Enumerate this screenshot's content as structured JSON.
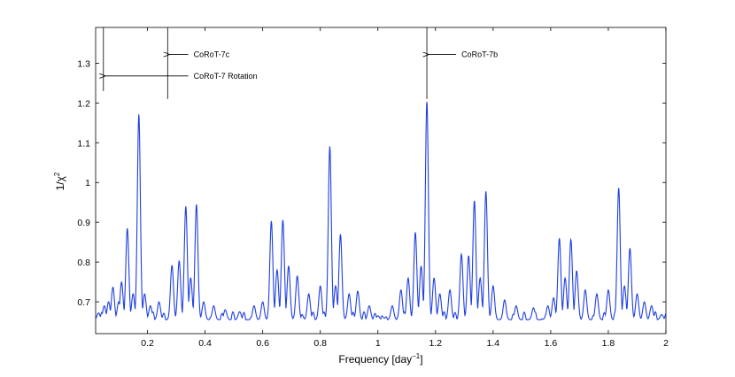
{
  "chart_data": {
    "type": "line",
    "title": "",
    "xlabel": "Frequency [day",
    "xlabel_sup": "−1",
    "xlabel_end": "]",
    "ylabel": "1/χ",
    "ylabel_sup": "2",
    "xlim": [
      0.02,
      2.0
    ],
    "ylim": [
      0.62,
      1.39
    ],
    "xticks": [
      0.2,
      0.4,
      0.6,
      0.8,
      1.0,
      1.2,
      1.4,
      1.6,
      1.8,
      2.0
    ],
    "xtick_labels": [
      "0.2",
      "0.4",
      "0.6",
      "0.8",
      "1",
      "1.2",
      "1.4",
      "1.6",
      "1.8",
      "2"
    ],
    "yticks": [
      0.7,
      0.8,
      0.9,
      1.0,
      1.1,
      1.2,
      1.3
    ],
    "ytick_labels": [
      "0.7",
      "0.8",
      "0.9",
      "1",
      "1.1",
      "1.2",
      "1.3"
    ],
    "grid": false,
    "line_color": "#1f3fe0",
    "baseline": 0.655,
    "peaks": [
      {
        "x": 0.03,
        "y": 0.672
      },
      {
        "x": 0.05,
        "y": 0.69
      },
      {
        "x": 0.065,
        "y": 0.7
      },
      {
        "x": 0.08,
        "y": 0.737
      },
      {
        "x": 0.1,
        "y": 0.7
      },
      {
        "x": 0.11,
        "y": 0.75
      },
      {
        "x": 0.13,
        "y": 0.885
      },
      {
        "x": 0.15,
        "y": 0.72
      },
      {
        "x": 0.17,
        "y": 1.172
      },
      {
        "x": 0.19,
        "y": 0.72
      },
      {
        "x": 0.21,
        "y": 0.69
      },
      {
        "x": 0.24,
        "y": 0.7
      },
      {
        "x": 0.285,
        "y": 0.792
      },
      {
        "x": 0.31,
        "y": 0.803
      },
      {
        "x": 0.333,
        "y": 0.94
      },
      {
        "x": 0.35,
        "y": 0.76
      },
      {
        "x": 0.37,
        "y": 0.945
      },
      {
        "x": 0.395,
        "y": 0.7
      },
      {
        "x": 0.43,
        "y": 0.69
      },
      {
        "x": 0.47,
        "y": 0.68
      },
      {
        "x": 0.52,
        "y": 0.675
      },
      {
        "x": 0.57,
        "y": 0.69
      },
      {
        "x": 0.6,
        "y": 0.7
      },
      {
        "x": 0.63,
        "y": 0.903
      },
      {
        "x": 0.65,
        "y": 0.78
      },
      {
        "x": 0.67,
        "y": 0.906
      },
      {
        "x": 0.69,
        "y": 0.79
      },
      {
        "x": 0.72,
        "y": 0.765
      },
      {
        "x": 0.76,
        "y": 0.72
      },
      {
        "x": 0.8,
        "y": 0.74
      },
      {
        "x": 0.833,
        "y": 1.091
      },
      {
        "x": 0.853,
        "y": 0.74
      },
      {
        "x": 0.87,
        "y": 0.87
      },
      {
        "x": 0.9,
        "y": 0.72
      },
      {
        "x": 0.93,
        "y": 0.727
      },
      {
        "x": 0.97,
        "y": 0.69
      },
      {
        "x": 1.0,
        "y": 0.665
      },
      {
        "x": 1.05,
        "y": 0.69
      },
      {
        "x": 1.08,
        "y": 0.73
      },
      {
        "x": 1.105,
        "y": 0.76
      },
      {
        "x": 1.13,
        "y": 0.875
      },
      {
        "x": 1.15,
        "y": 0.79
      },
      {
        "x": 1.17,
        "y": 1.204
      },
      {
        "x": 1.195,
        "y": 0.76
      },
      {
        "x": 1.215,
        "y": 0.72
      },
      {
        "x": 1.25,
        "y": 0.73
      },
      {
        "x": 1.29,
        "y": 0.82
      },
      {
        "x": 1.315,
        "y": 0.816
      },
      {
        "x": 1.335,
        "y": 0.955
      },
      {
        "x": 1.355,
        "y": 0.76
      },
      {
        "x": 1.375,
        "y": 0.978
      },
      {
        "x": 1.4,
        "y": 0.74
      },
      {
        "x": 1.44,
        "y": 0.705
      },
      {
        "x": 1.48,
        "y": 0.69
      },
      {
        "x": 1.54,
        "y": 0.685
      },
      {
        "x": 1.59,
        "y": 0.69
      },
      {
        "x": 1.61,
        "y": 0.71
      },
      {
        "x": 1.63,
        "y": 0.86
      },
      {
        "x": 1.65,
        "y": 0.76
      },
      {
        "x": 1.67,
        "y": 0.857
      },
      {
        "x": 1.69,
        "y": 0.778
      },
      {
        "x": 1.72,
        "y": 0.73
      },
      {
        "x": 1.76,
        "y": 0.72
      },
      {
        "x": 1.8,
        "y": 0.73
      },
      {
        "x": 1.836,
        "y": 0.987
      },
      {
        "x": 1.856,
        "y": 0.74
      },
      {
        "x": 1.875,
        "y": 0.835
      },
      {
        "x": 1.9,
        "y": 0.72
      },
      {
        "x": 1.925,
        "y": 0.7
      },
      {
        "x": 1.95,
        "y": 0.69
      },
      {
        "x": 1.985,
        "y": 0.668
      }
    ],
    "annotations": [
      {
        "label": "CoRoT-7c",
        "x": 0.27,
        "y_top": 1.39,
        "y_bottom": 1.21,
        "arrow_y": 1.322,
        "text_x": 0.36
      },
      {
        "label": "CoRoT-7 Rotation",
        "x": 0.047,
        "y_top": 1.39,
        "y_bottom": 1.23,
        "arrow_y": 1.268,
        "span_to": 0.27,
        "text_x": 0.36
      },
      {
        "label": "CoRoT-7b",
        "x": 1.17,
        "y_top": 1.39,
        "y_bottom": 1.21,
        "arrow_y": 1.322,
        "text_x": 1.29
      }
    ]
  }
}
